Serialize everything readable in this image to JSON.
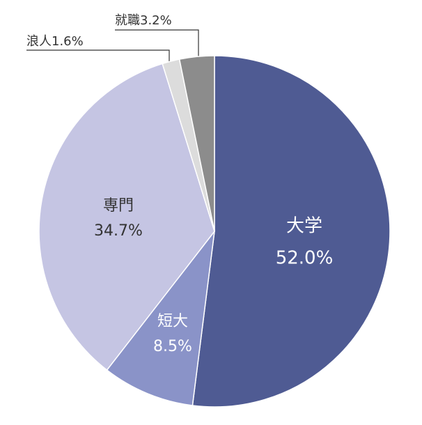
{
  "chart_data": {
    "type": "pie",
    "categories": [
      "大学",
      "短大",
      "専門",
      "浪人",
      "就職"
    ],
    "values": [
      52.0,
      8.5,
      34.7,
      1.6,
      3.2
    ],
    "value_labels": [
      "52.0%",
      "8.5%",
      "34.7%",
      "1.6%",
      "3.2%"
    ],
    "colors": [
      "#4f5b93",
      "#8a93c8",
      "#c5c5e3",
      "#dcdcdc",
      "#8c8c8c"
    ]
  }
}
